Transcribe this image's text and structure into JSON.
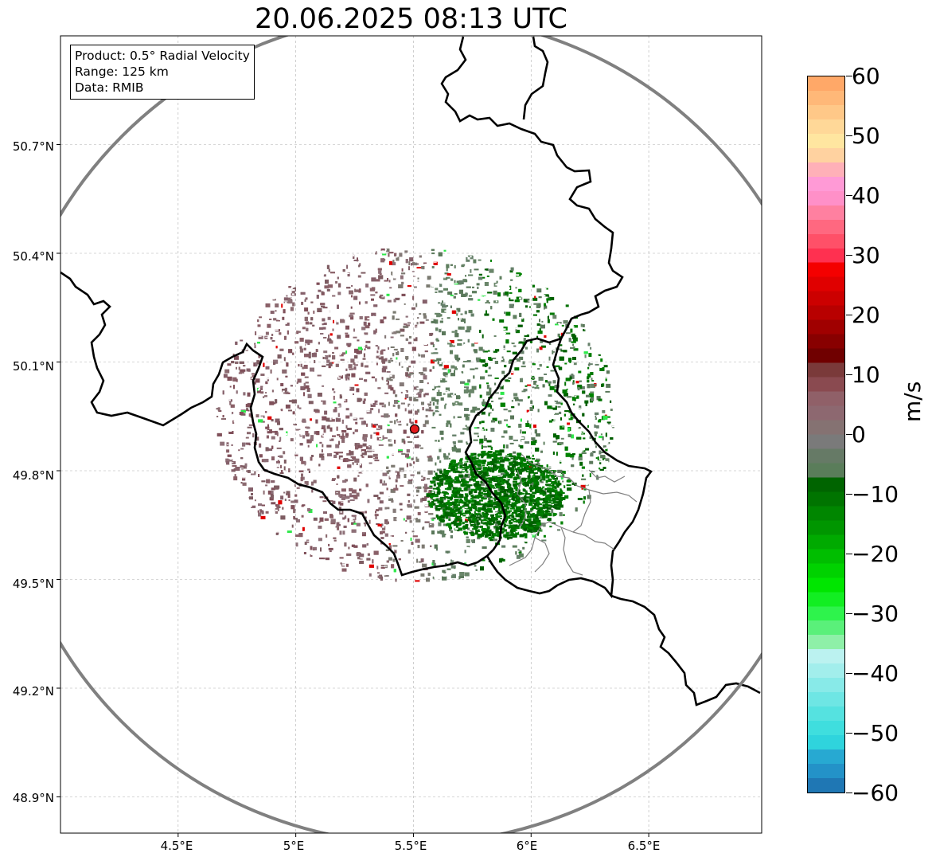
{
  "title": "20.06.2025 08:13 UTC",
  "info": {
    "product": "Product: 0.5° Radial Velocity",
    "range": "Range: 125 km",
    "data": "Data: RMIB"
  },
  "map": {
    "lon_range": [
      4.0,
      6.98
    ],
    "lat_range": [
      48.8,
      51.0
    ],
    "radar_site": {
      "lon": 5.505,
      "lat": 49.915,
      "color": "#e31a1c"
    },
    "range_ring_color": "#808080",
    "border_color": "#000000",
    "region_border_color": "#808080",
    "y_ticks": [
      {
        "lat": 50.7,
        "label": "50.7°N"
      },
      {
        "lat": 50.4,
        "label": "50.4°N"
      },
      {
        "lat": 50.1,
        "label": "50.1°N"
      },
      {
        "lat": 49.8,
        "label": "49.8°N"
      },
      {
        "lat": 49.5,
        "label": "49.5°N"
      },
      {
        "lat": 49.2,
        "label": "49.2°N"
      },
      {
        "lat": 48.9,
        "label": "48.9°N"
      }
    ],
    "x_ticks": [
      {
        "lon": 4.5,
        "label": "4.5°E"
      },
      {
        "lon": 5.0,
        "label": "5°E"
      },
      {
        "lon": 5.5,
        "label": "5.5°E"
      },
      {
        "lon": 6.0,
        "label": "6°E"
      },
      {
        "lon": 6.5,
        "label": "6.5°E"
      }
    ]
  },
  "colorbar": {
    "unit": "m/s",
    "min": -60,
    "max": 60,
    "ticks": [
      {
        "value": 60,
        "label": "60"
      },
      {
        "value": 50,
        "label": "50"
      },
      {
        "value": 40,
        "label": "40"
      },
      {
        "value": 30,
        "label": "30"
      },
      {
        "value": 20,
        "label": "20"
      },
      {
        "value": 10,
        "label": "10"
      },
      {
        "value": 0,
        "label": "0"
      },
      {
        "value": -10,
        "label": "−10"
      },
      {
        "value": -20,
        "label": "−20"
      },
      {
        "value": -30,
        "label": "−30"
      },
      {
        "value": -40,
        "label": "−40"
      },
      {
        "value": -50,
        "label": "−50"
      },
      {
        "value": -60,
        "label": "−60"
      }
    ],
    "colors_bottom_to_top": [
      "#1f77b4",
      "#2392c8",
      "#27a9d2",
      "#2fd4dd",
      "#3fdede",
      "#55e2e0",
      "#6ee6e4",
      "#88eae8",
      "#a2eeec",
      "#bbf2f0",
      "#8ef0a8",
      "#5af07a",
      "#2ef34c",
      "#12ee22",
      "#00e600",
      "#00d200",
      "#00be00",
      "#00aa00",
      "#009600",
      "#008600",
      "#007400",
      "#006400",
      "#5a7d5a",
      "#667a66",
      "#7a7a7a",
      "#857272",
      "#8d6870",
      "#906068",
      "#8a4a50",
      "#7a3a3a",
      "#700000",
      "#880000",
      "#a00000",
      "#b80000",
      "#cc0000",
      "#e00000",
      "#f40000",
      "#ff3050",
      "#ff5068",
      "#ff6880",
      "#ff80a0",
      "#ff90c8",
      "#ff9ad6",
      "#ffb0b8",
      "#ffd2a0",
      "#ffe6a0",
      "#ffd898",
      "#ffc888",
      "#ffb878",
      "#ffa868"
    ]
  }
}
